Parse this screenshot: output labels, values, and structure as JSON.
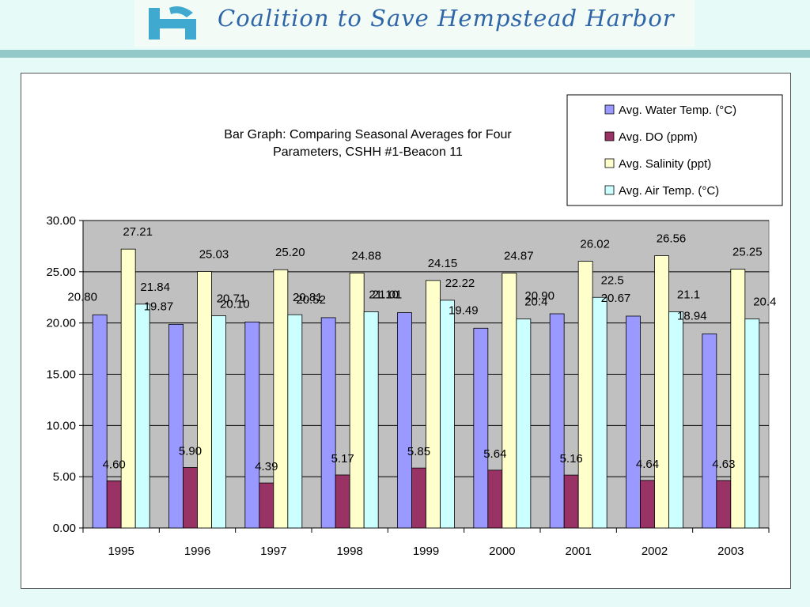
{
  "header": {
    "org_name": "Coalition to Save Hempstead Harbor",
    "logo_icon": "hh-monogram-logo-icon"
  },
  "colors": {
    "background": "#e6fbf8",
    "header_bar": "#93c9c9",
    "plot_bg": "#c0c0c0",
    "series": [
      "#9999ff",
      "#993366",
      "#ffffcc",
      "#ccffff"
    ]
  },
  "chart_data": {
    "type": "bar",
    "title": "Bar Graph: Comparing Seasonal Averages for Four Parameters, CSHH #1-Beacon 11",
    "title_lines": [
      "Bar Graph: Comparing Seasonal Averages for Four",
      "Parameters, CSHH #1-Beacon 11"
    ],
    "categories": [
      "1995",
      "1996",
      "1997",
      "1998",
      "1999",
      "2000",
      "2001",
      "2002",
      "2003"
    ],
    "series": [
      {
        "name": "Avg. Water Temp. (°C)",
        "values": [
          20.8,
          19.87,
          20.1,
          20.52,
          21.01,
          19.49,
          20.9,
          20.67,
          18.94
        ],
        "labels": [
          "20.80",
          "19.87",
          "20.10",
          "20.52",
          "21.01",
          "19.49",
          "20.90",
          "20.67",
          "18.94"
        ]
      },
      {
        "name": "Avg. DO (ppm)",
        "values": [
          4.6,
          5.9,
          4.39,
          5.17,
          5.85,
          5.64,
          5.16,
          4.64,
          4.63
        ],
        "labels": [
          "4.60",
          "5.90",
          "4.39",
          "5.17",
          "5.85",
          "5.64",
          "5.16",
          "4.64",
          "4.63"
        ]
      },
      {
        "name": "Avg. Salinity (ppt)",
        "values": [
          27.21,
          25.03,
          25.2,
          24.88,
          24.15,
          24.87,
          26.02,
          26.56,
          25.25
        ],
        "labels": [
          "27.21",
          "25.03",
          "25.20",
          "24.88",
          "24.15",
          "24.87",
          "26.02",
          "26.56",
          "25.25"
        ]
      },
      {
        "name": "Avg. Air Temp. (°C)",
        "values": [
          21.84,
          20.71,
          20.81,
          21.1,
          22.22,
          20.4,
          22.5,
          21.1,
          20.4
        ],
        "labels": [
          "21.84",
          "20.71",
          "20.81",
          "21.10",
          "22.22",
          "20.4",
          "22.5",
          "21.1",
          "20.4"
        ]
      }
    ],
    "ylim": [
      0,
      30
    ],
    "yticks": [
      "0.00",
      "5.00",
      "10.00",
      "15.00",
      "20.00",
      "25.00",
      "30.00"
    ],
    "xlabel": "",
    "ylabel": "",
    "grid": true,
    "legend": "top-right"
  }
}
